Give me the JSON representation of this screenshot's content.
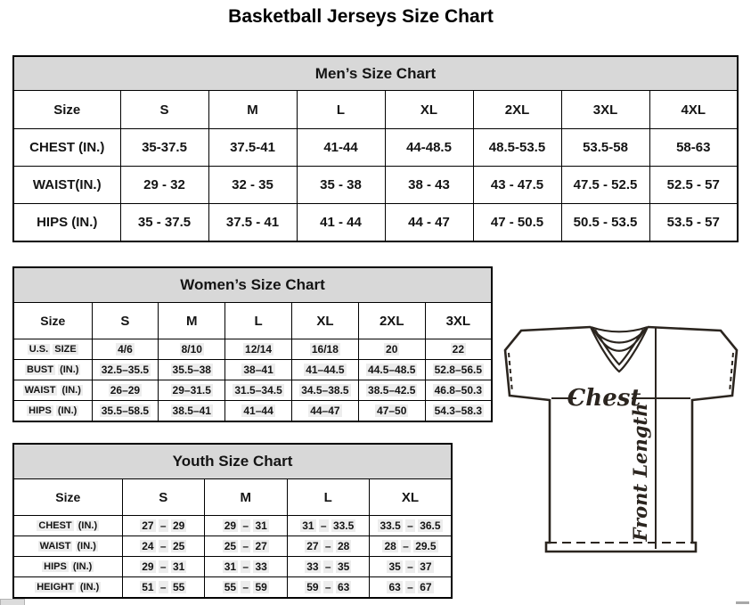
{
  "page": {
    "title": "Basketball Jerseys Size Chart"
  },
  "colors": {
    "table_header_band": "#d8d8d8",
    "cell_highlight": "#ededed",
    "border": "#000000",
    "diagram_line": "#2b251f"
  },
  "tables": {
    "mens": {
      "title": "Men’s Size Chart",
      "size_label": "Size",
      "sizes": [
        "S",
        "M",
        "L",
        "XL",
        "2XL",
        "3XL",
        "4XL"
      ],
      "rows": [
        {
          "label": "CHEST (IN.)",
          "values": [
            "35-37.5",
            "37.5-41",
            "41-44",
            "44-48.5",
            "48.5-53.5",
            "53.5-58",
            "58-63"
          ]
        },
        {
          "label": "WAIST(IN.)",
          "values": [
            "29 - 32",
            "32 - 35",
            "35 - 38",
            "38 - 43",
            "43 - 47.5",
            "47.5 - 52.5",
            "52.5 - 57"
          ]
        },
        {
          "label": "HIPS (IN.)",
          "values": [
            "35 - 37.5",
            "37.5 - 41",
            "41 - 44",
            "44 - 47",
            "47 - 50.5",
            "50.5 - 53.5",
            "53.5 - 57"
          ]
        }
      ]
    },
    "womens": {
      "title": "Women’s Size Chart",
      "size_label": "Size",
      "sizes": [
        "S",
        "M",
        "L",
        "XL",
        "2XL",
        "3XL"
      ],
      "rows": [
        {
          "label": "U.S. SIZE",
          "values": [
            "4/6",
            "8/10",
            "12/14",
            "16/18",
            "20",
            "22"
          ]
        },
        {
          "label": "BUST (IN.)",
          "values": [
            "32.5–35.5",
            "35.5–38",
            "38–41",
            "41–44.5",
            "44.5–48.5",
            "52.8–56.5"
          ]
        },
        {
          "label": "WAIST (IN.)",
          "values": [
            "26–29",
            "29–31.5",
            "31.5–34.5",
            "34.5–38.5",
            "38.5–42.5",
            "46.8–50.3"
          ]
        },
        {
          "label": "HIPS (IN.)",
          "values": [
            "35.5–58.5",
            "38.5–41",
            "41–44",
            "44–47",
            "47–50",
            "54.3–58.3"
          ]
        }
      ]
    },
    "youth": {
      "title": "Youth Size Chart",
      "size_label": "Size",
      "sizes": [
        "S",
        "M",
        "L",
        "XL"
      ],
      "rows": [
        {
          "label": "CHEST (IN.)",
          "values": [
            "27 – 29",
            "29 – 31",
            "31 – 33.5",
            "33.5 – 36.5"
          ]
        },
        {
          "label": "WAIST (IN.)",
          "values": [
            "24 – 25",
            "25 – 27",
            "27 – 28",
            "28 – 29.5"
          ]
        },
        {
          "label": "HIPS (IN.)",
          "values": [
            "29 – 31",
            "31 – 33",
            "33 – 35",
            "35 – 37"
          ]
        },
        {
          "label": "HEIGHT (IN.)",
          "values": [
            "51 – 55",
            "55 – 59",
            "59 – 63",
            "63 – 67"
          ]
        }
      ]
    }
  },
  "diagram": {
    "chest_label": "Chest",
    "front_length_label": "Front Length"
  }
}
